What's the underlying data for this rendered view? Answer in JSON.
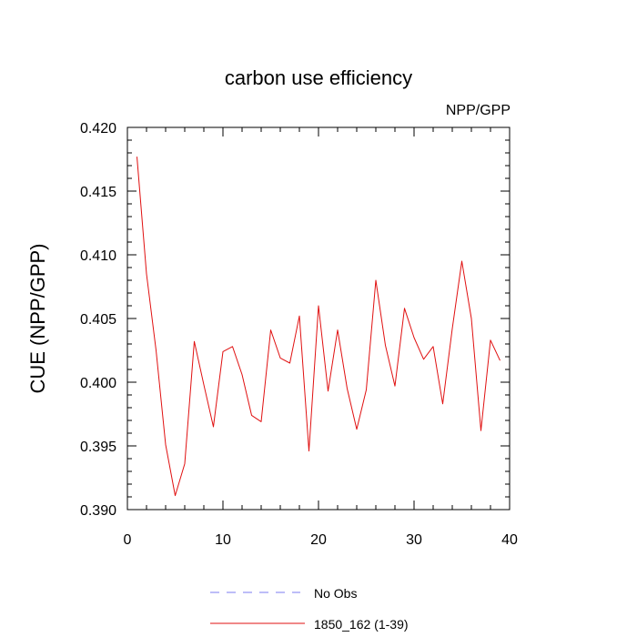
{
  "chart_data": {
    "type": "line",
    "title": "carbon use efficiency",
    "corner_label": "NPP/GPP",
    "xlabel": "",
    "ylabel": "CUE  (NPP/GPP)",
    "xlim": [
      0,
      40
    ],
    "ylim": [
      0.39,
      0.42
    ],
    "x_ticks": [
      0,
      10,
      20,
      30,
      40
    ],
    "x_tick_labels": [
      "0",
      "10",
      "20",
      "30",
      "40"
    ],
    "y_ticks": [
      0.39,
      0.395,
      0.4,
      0.405,
      0.41,
      0.415,
      0.42
    ],
    "y_tick_labels": [
      "0.390",
      "0.395",
      "0.400",
      "0.405",
      "0.410",
      "0.415",
      "0.420"
    ],
    "grid": false,
    "legend_position": "bottom",
    "series": [
      {
        "name": "No Obs",
        "color": "#7b7bf0",
        "dash": "dashed",
        "x": [],
        "y": []
      },
      {
        "name": "1850_162 (1-39)",
        "color": "#e01010",
        "dash": "solid",
        "x": [
          1,
          2,
          3,
          4,
          5,
          6,
          7,
          8,
          9,
          10,
          11,
          12,
          13,
          14,
          15,
          16,
          17,
          18,
          19,
          20,
          21,
          22,
          23,
          24,
          25,
          26,
          27,
          28,
          29,
          30,
          31,
          32,
          33,
          34,
          35,
          36,
          37,
          38,
          39
        ],
        "y": [
          0.4177,
          0.4085,
          0.4025,
          0.3951,
          0.3911,
          0.3936,
          0.4032,
          0.3998,
          0.3965,
          0.4024,
          0.4028,
          0.4006,
          0.3974,
          0.3969,
          0.4041,
          0.4019,
          0.4015,
          0.4052,
          0.3946,
          0.406,
          0.3993,
          0.4041,
          0.3995,
          0.3963,
          0.3994,
          0.408,
          0.4029,
          0.3997,
          0.4058,
          0.4035,
          0.4018,
          0.4028,
          0.3983,
          0.4042,
          0.4095,
          0.405,
          0.3962,
          0.4033,
          0.4017
        ]
      }
    ]
  }
}
